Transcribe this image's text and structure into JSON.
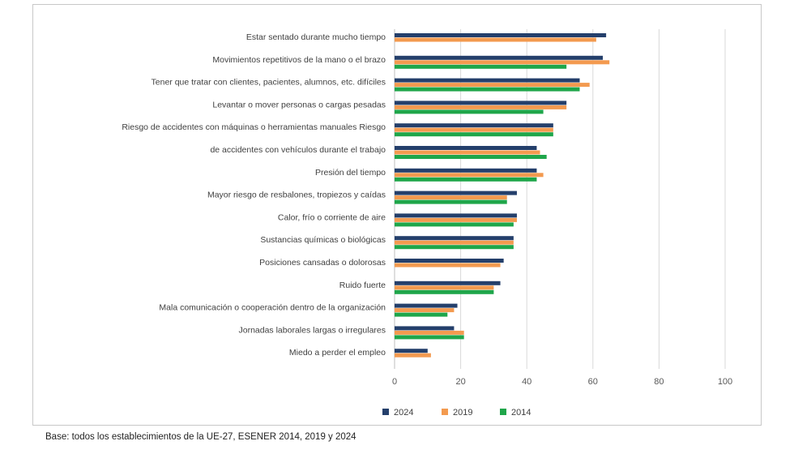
{
  "chart_data": {
    "type": "bar",
    "orientation": "horizontal",
    "categories": [
      "Estar sentado durante mucho tiempo",
      "Movimientos repetitivos de la mano o el brazo",
      "Tener que tratar con clientes, pacientes, alumnos, etc. difíciles",
      "Levantar o mover personas o cargas pesadas",
      "Riesgo de accidentes con máquinas o herramientas manuales Riesgo",
      "de accidentes con vehículos durante el trabajo",
      "Presión del tiempo",
      "Mayor riesgo de resbalones, tropiezos y caídas",
      "Calor, frío o corriente de aire",
      "Sustancias químicas o biológicas",
      "Posiciones cansadas o dolorosas",
      "Ruido fuerte",
      "Mala comunicación o cooperación dentro de la organización",
      "Jornadas laborales largas o irregulares",
      "Miedo a perder el empleo"
    ],
    "series": [
      {
        "name": "2024",
        "color": "#243f6b",
        "values": [
          64,
          63,
          56,
          52,
          48,
          43,
          43,
          37,
          37,
          36,
          33,
          32,
          19,
          18,
          10
        ]
      },
      {
        "name": "2019",
        "color": "#f39a4f",
        "values": [
          61,
          65,
          59,
          52,
          48,
          44,
          45,
          34,
          37,
          36,
          32,
          30,
          18,
          21,
          11
        ]
      },
      {
        "name": "2014",
        "color": "#1fa64a",
        "values": [
          null,
          52,
          56,
          45,
          48,
          46,
          43,
          34,
          36,
          36,
          null,
          30,
          16,
          21,
          null
        ]
      }
    ],
    "xlim": [
      0,
      100
    ],
    "xticks": [
      "0",
      "20",
      "40",
      "60",
      "80",
      "100"
    ],
    "grid": true,
    "legend": "bottom"
  },
  "footer": "Base: todos los establecimientos de la UE-27, ESENER 2014, 2019 y 2024"
}
